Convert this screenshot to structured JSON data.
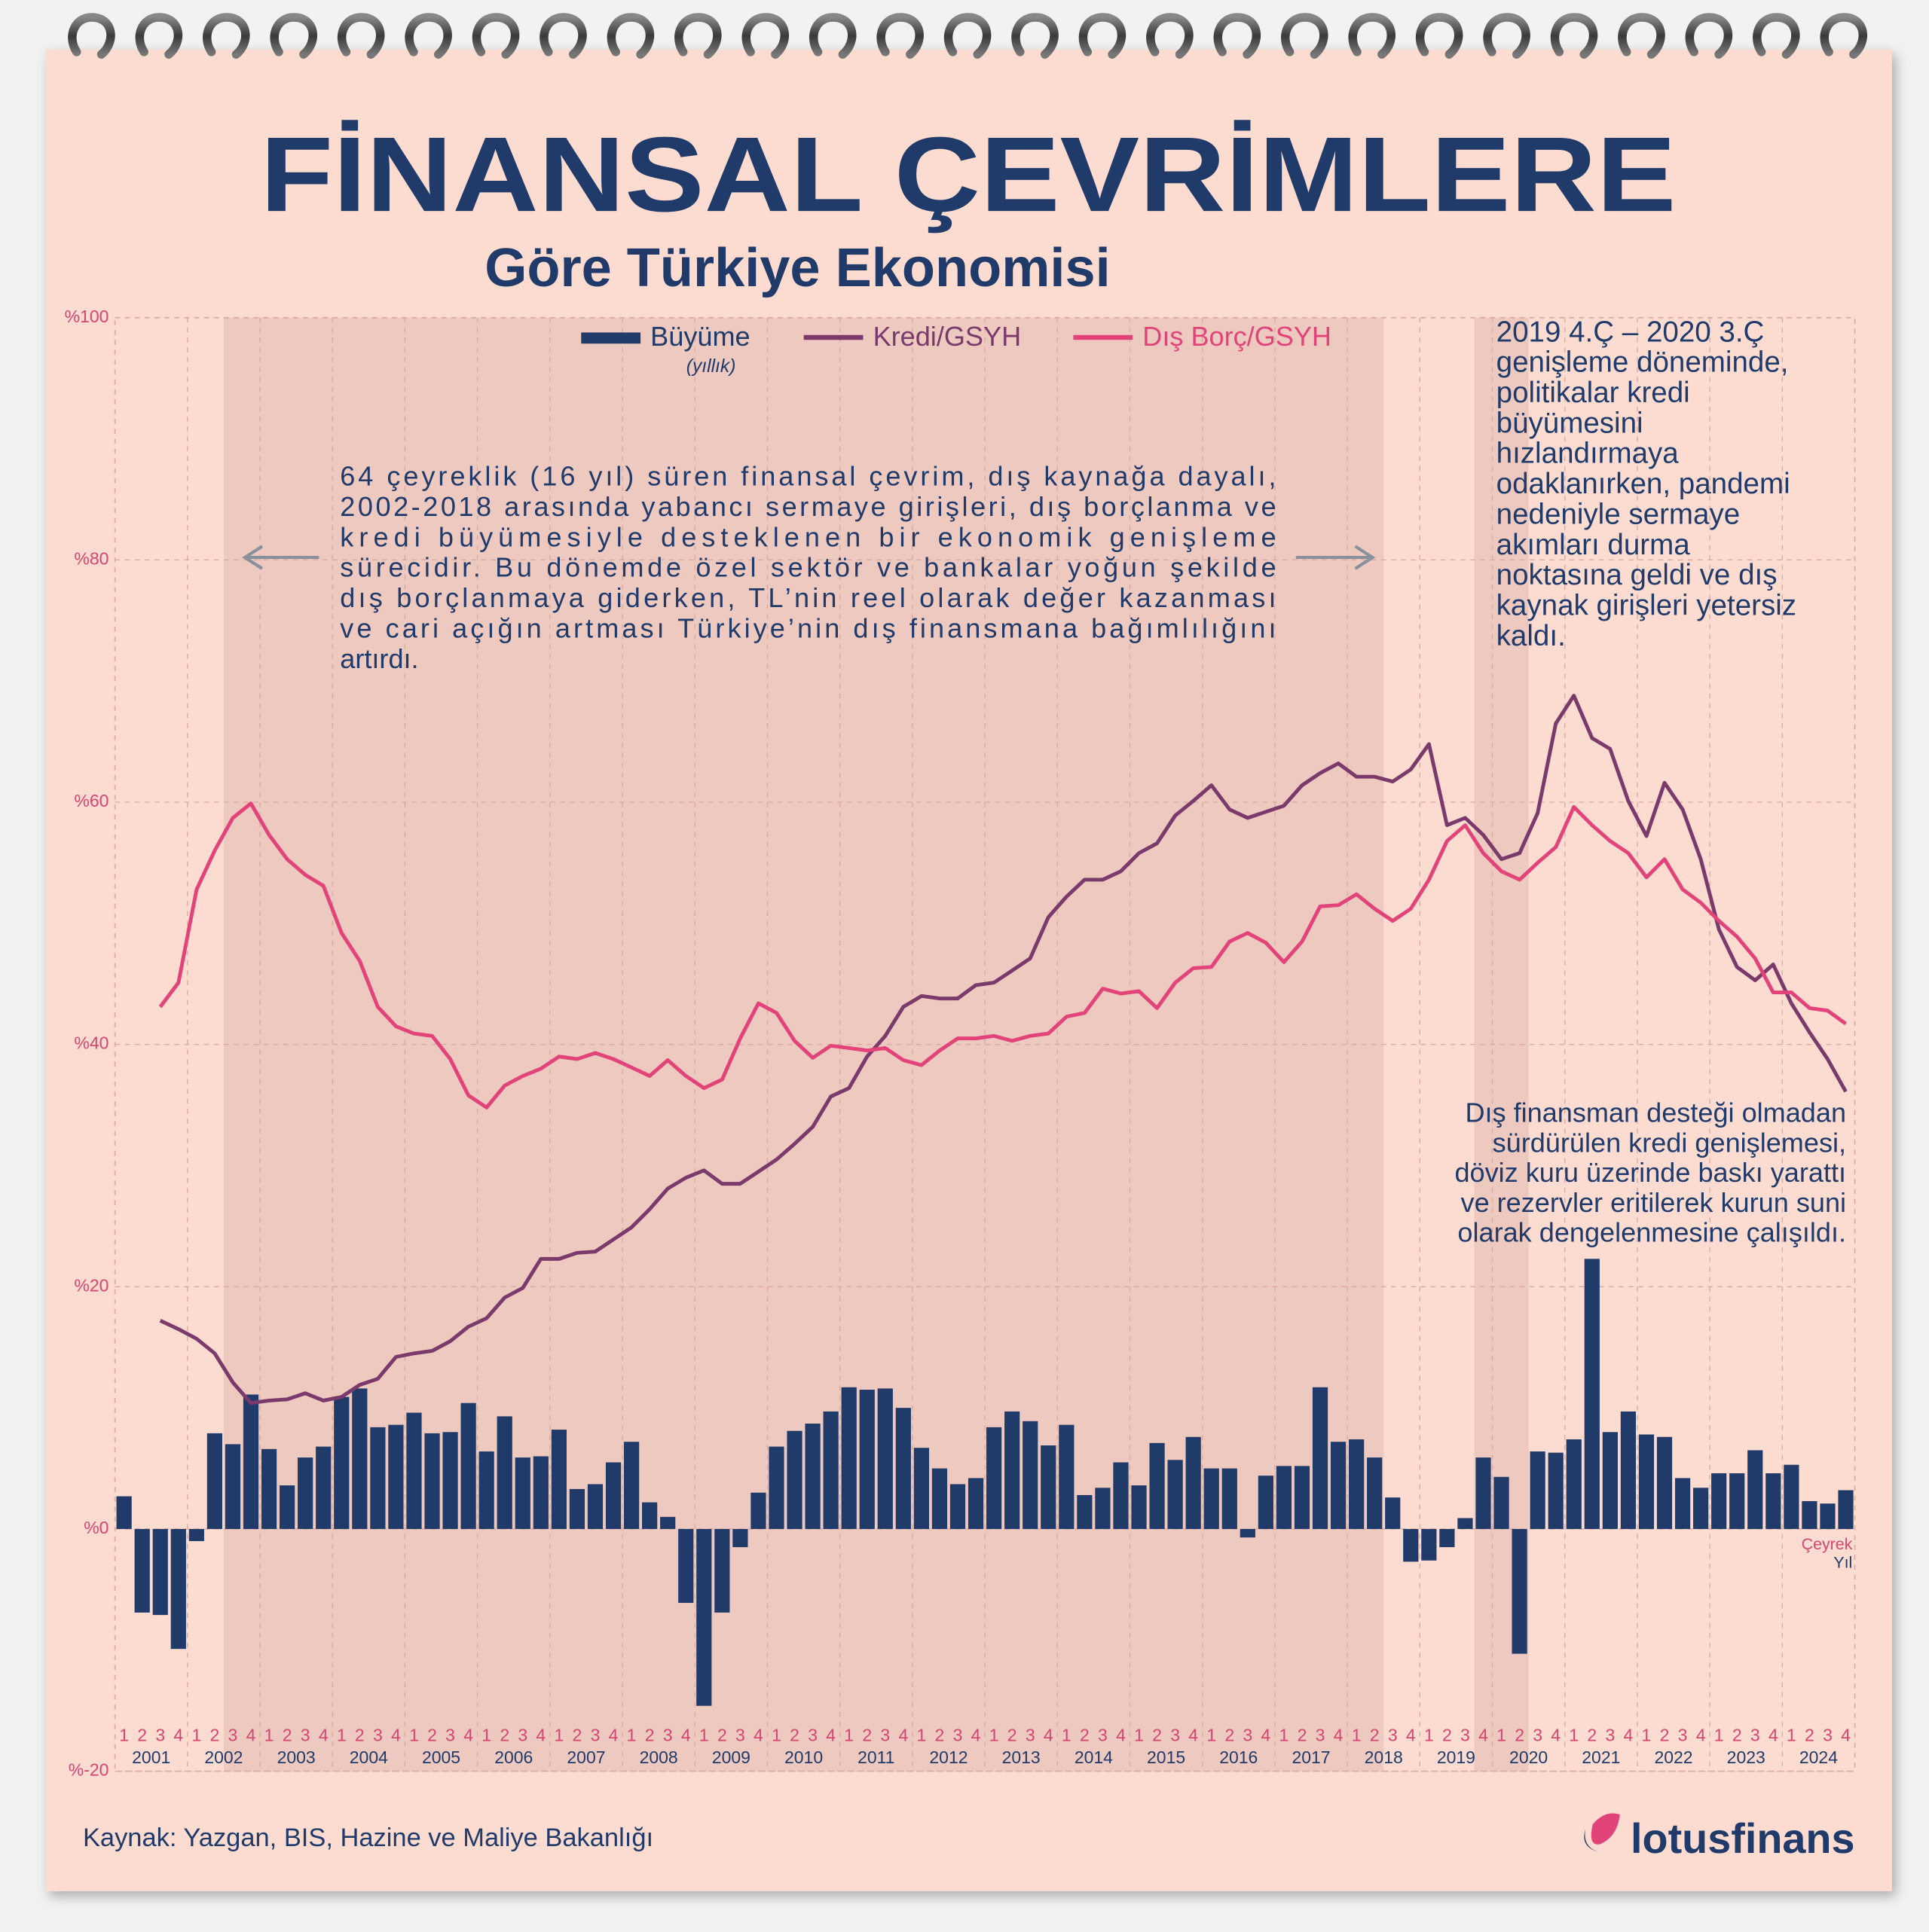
{
  "chart_data": {
    "type": "bar-line",
    "title": "FİNANSAL ÇEVRİMLERE",
    "subtitle": "Göre Türkiye Ekonomisi",
    "categories": [
      "1",
      "2",
      "3",
      "4",
      "1",
      "2",
      "3",
      "4",
      "1",
      "2",
      "3",
      "4",
      "1",
      "2",
      "3",
      "4",
      "1",
      "2",
      "3",
      "4",
      "1",
      "2",
      "3",
      "4",
      "1",
      "2",
      "3",
      "4",
      "1",
      "2",
      "3",
      "4",
      "1",
      "2",
      "3",
      "4",
      "1",
      "2",
      "3",
      "4",
      "1",
      "2",
      "3",
      "4",
      "1",
      "2",
      "3",
      "4",
      "1",
      "2",
      "3",
      "4",
      "1",
      "2",
      "3",
      "4",
      "1",
      "2",
      "3",
      "4",
      "1",
      "2",
      "3",
      "4",
      "1",
      "2",
      "3",
      "4",
      "1",
      "2",
      "3",
      "4",
      "1",
      "2",
      "3",
      "4",
      "1",
      "2",
      "3",
      "4",
      "1",
      "2",
      "3",
      "4",
      "1",
      "2",
      "3",
      "4",
      "1",
      "2",
      "3",
      "4",
      "1",
      "2",
      "3",
      "4"
    ],
    "years": [
      "2001",
      "2002",
      "2003",
      "2004",
      "2005",
      "2006",
      "2007",
      "2008",
      "2009",
      "2010",
      "2011",
      "2012",
      "2013",
      "2014",
      "2015",
      "2016",
      "2017",
      "2018",
      "2019",
      "2020",
      "2021",
      "2022",
      "2023",
      "2024"
    ],
    "x_label_quarter": "Çeyrek",
    "x_label_year": "Yıl",
    "ylim": [
      -20,
      100
    ],
    "yticks": [
      {
        "value": -20,
        "label": "%-20"
      },
      {
        "value": 0,
        "label": "%0"
      },
      {
        "value": 20,
        "label": "%20"
      },
      {
        "value": 40,
        "label": "%40"
      },
      {
        "value": 60,
        "label": "%60"
      },
      {
        "value": 80,
        "label": "%80"
      },
      {
        "value": 100,
        "label": "%100"
      }
    ],
    "grid": true,
    "legend_note": "(yıllık)",
    "series": [
      {
        "name": "Büyüme",
        "type": "bar",
        "color": "#203a6a",
        "values": [
          2.7,
          -6.9,
          -7.1,
          -9.9,
          -1,
          7.9,
          7,
          11.1,
          6.6,
          3.6,
          5.9,
          6.8,
          10.9,
          11.6,
          8.4,
          8.6,
          9.6,
          7.9,
          8,
          10.4,
          6.4,
          9.3,
          5.9,
          6,
          8.2,
          3.3,
          3.7,
          5.5,
          7.2,
          2.2,
          1,
          -6.1,
          -14.6,
          -6.9,
          -1.5,
          3,
          6.8,
          8.1,
          8.7,
          9.7,
          11.7,
          11.5,
          11.6,
          10,
          6.7,
          5,
          3.7,
          4.2,
          8.4,
          9.7,
          8.9,
          6.9,
          8.6,
          2.8,
          3.4,
          5.5,
          3.6,
          7.1,
          5.7,
          7.6,
          5,
          5,
          -0.7,
          4.4,
          5.2,
          5.2,
          11.7,
          7.2,
          7.4,
          5.9,
          2.6,
          -2.7,
          -2.6,
          -1.5,
          0.9,
          5.9,
          4.3,
          -10.3,
          6.4,
          6.3,
          7.4,
          22.3,
          8,
          9.7,
          7.8,
          7.6,
          4.2,
          3.4,
          4.6,
          4.6,
          6.5,
          4.6,
          5.3,
          2.3,
          2.1,
          3.2
        ]
      },
      {
        "name": "Kredi/GSYH",
        "type": "line",
        "color": "#7a3a6c",
        "values": [
          null,
          null,
          17.2,
          16.5,
          15.7,
          14.5,
          12.1,
          10.4,
          10.6,
          10.7,
          11.2,
          10.6,
          10.9,
          11.9,
          12.4,
          14.2,
          14.5,
          14.7,
          15.5,
          16.7,
          17.4,
          19.1,
          19.9,
          22.3,
          22.3,
          22.8,
          22.9,
          23.9,
          24.9,
          26.4,
          28.1,
          29,
          29.6,
          28.5,
          28.5,
          29.5,
          30.5,
          31.8,
          33.2,
          35.7,
          36.4,
          39,
          40.7,
          43.1,
          44,
          43.8,
          43.8,
          44.9,
          45.1,
          46.1,
          47.1,
          50.5,
          52.2,
          53.6,
          53.6,
          54.3,
          55.8,
          56.6,
          58.9,
          60.1,
          61.4,
          59.4,
          58.7,
          59.2,
          59.7,
          61.4,
          62.4,
          63.2,
          62.1,
          62.1,
          61.7,
          62.7,
          64.8,
          58.1,
          58.7,
          57.3,
          55.3,
          55.8,
          59.1,
          66.5,
          68.8,
          65.3,
          64.4,
          60.1,
          57.2,
          61.6,
          59.4,
          55.3,
          49.5,
          46.4,
          45.3,
          46.6,
          43.4,
          41,
          38.8,
          36.1
        ]
      },
      {
        "name": "Dış Borç/GSYH",
        "type": "line",
        "color": "#e2447a",
        "values": [
          null,
          null,
          43.1,
          45.1,
          52.8,
          56,
          58.7,
          59.9,
          57.3,
          55.3,
          54,
          53.1,
          49.2,
          46.9,
          43.1,
          41.5,
          40.9,
          40.7,
          38.8,
          35.8,
          34.8,
          36.6,
          37.4,
          38,
          39,
          38.8,
          39.3,
          38.8,
          38.1,
          37.4,
          38.7,
          37.4,
          36.4,
          37.1,
          40.5,
          43.4,
          42.6,
          40.3,
          38.9,
          39.9,
          39.7,
          39.5,
          39.7,
          38.7,
          38.3,
          39.5,
          40.5,
          40.5,
          40.7,
          40.3,
          40.7,
          40.9,
          42.3,
          42.6,
          44.6,
          44.2,
          44.4,
          43,
          45.1,
          46.3,
          46.4,
          48.5,
          49.2,
          48.4,
          46.8,
          48.5,
          51.4,
          51.5,
          52.4,
          51.2,
          50.2,
          51.2,
          53.6,
          56.8,
          58.1,
          55.8,
          54.3,
          53.6,
          55,
          56.3,
          59.6,
          58.1,
          56.8,
          55.8,
          53.8,
          55.3,
          52.8,
          51.7,
          50.2,
          48.9,
          47.1,
          44.3,
          44.3,
          43,
          42.8,
          41.7
        ]
      }
    ],
    "annotations": [
      {
        "lines": [
          "64 çeyreklik (16 yıl) süren finansal çevrim, dış kaynağa dayalı,",
          "2002-2018 arasında yabancı sermaye girişleri, dış borçlanma ve",
          "kredi büyümesiyle desteklenen bir ekonomik genişleme",
          "sürecidir. Bu dönemde özel sektör ve bankalar yoğun şekilde",
          "dış borçlanmaya giderken, TL’nin reel olarak değer kazanması",
          "ve cari açığın artması Türkiye’nin dış finansmana bağımlılığını",
          "artırdı."
        ]
      },
      {
        "lines": [
          "2019 4.Ç – 2020 3.Ç",
          "genişleme döneminde,",
          "politikalar kredi",
          "büyümesini",
          "hızlandırmaya",
          "odaklanırken, pandemi",
          "nedeniyle sermaye",
          "akımları durma",
          "noktasına geldi ve dış",
          "kaynak girişleri yetersiz",
          "kaldı."
        ]
      },
      {
        "lines": [
          "Dış finansman desteği olmadan",
          "sürdürülen kredi genişlemesi,",
          "döviz kuru üzerinde baskı yarattı",
          "ve rezervler eritilerek kurun suni",
          "olarak dengelenmesine çalışıldı."
        ]
      }
    ],
    "source": "Kaynak: Yazgan, BIS, Hazine ve Maliye Bakanlığı",
    "brand": "lotusfinans"
  }
}
